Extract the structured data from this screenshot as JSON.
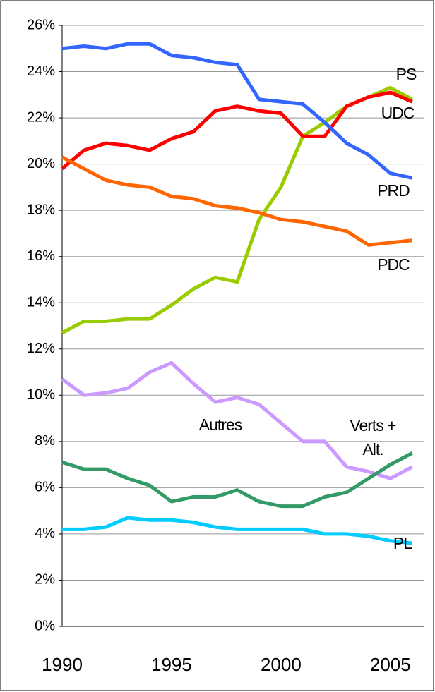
{
  "chart_data": {
    "type": "line",
    "x": [
      1990,
      1991,
      1992,
      1993,
      1994,
      1995,
      1996,
      1997,
      1998,
      1999,
      2000,
      2001,
      2002,
      2003,
      2004,
      2005,
      2006
    ],
    "xlim": [
      1990,
      2006.2
    ],
    "xticks": [
      1990,
      1995,
      2000,
      2005
    ],
    "ylim": [
      0,
      26
    ],
    "yticks": [
      {
        "value": 0,
        "label": "0%"
      },
      {
        "value": 2,
        "label": "2%"
      },
      {
        "value": 4,
        "label": "4%"
      },
      {
        "value": 6,
        "label": "6%"
      },
      {
        "value": 8,
        "label": "8%"
      },
      {
        "value": 10,
        "label": "10%"
      },
      {
        "value": 12,
        "label": "12%"
      },
      {
        "value": 14,
        "label": "14%"
      },
      {
        "value": 16,
        "label": "16%"
      },
      {
        "value": 18,
        "label": "18%"
      },
      {
        "value": 20,
        "label": "20%"
      },
      {
        "value": 22,
        "label": "22%"
      },
      {
        "value": 24,
        "label": "24%"
      },
      {
        "value": 26,
        "label": "26%"
      }
    ],
    "grid": true,
    "series": [
      {
        "name": "PS",
        "color": "#99cc00",
        "values": [
          12.7,
          13.2,
          13.2,
          13.3,
          13.3,
          13.9,
          14.6,
          15.1,
          14.9,
          17.6,
          19.0,
          21.2,
          21.8,
          22.5,
          22.9,
          23.3,
          22.8
        ]
      },
      {
        "name": "UDC",
        "color": "#ff0000",
        "values": [
          19.8,
          20.6,
          20.9,
          20.8,
          20.6,
          21.1,
          21.4,
          22.3,
          22.5,
          22.3,
          22.2,
          21.2,
          21.2,
          22.5,
          22.9,
          23.1,
          22.7
        ]
      },
      {
        "name": "PRD",
        "color": "#3366ff",
        "values": [
          25.0,
          25.1,
          25.0,
          25.2,
          25.2,
          24.7,
          24.6,
          24.4,
          24.3,
          22.8,
          22.7,
          22.6,
          21.8,
          20.9,
          20.4,
          19.6,
          19.4
        ]
      },
      {
        "name": "PDC",
        "color": "#ff6600",
        "values": [
          20.3,
          19.8,
          19.3,
          19.1,
          19.0,
          18.6,
          18.5,
          18.2,
          18.1,
          17.9,
          17.6,
          17.5,
          17.3,
          17.1,
          16.5,
          16.6,
          16.7
        ]
      },
      {
        "name": "Autres",
        "color": "#cc99ff",
        "values": [
          10.7,
          10.0,
          10.1,
          10.3,
          11.0,
          11.4,
          10.5,
          9.7,
          9.9,
          9.6,
          8.8,
          8.0,
          8.0,
          6.9,
          6.7,
          6.4,
          6.9
        ]
      },
      {
        "name": "Verts + Alt.",
        "color": "#339966",
        "values": [
          7.1,
          6.8,
          6.8,
          6.4,
          6.1,
          5.4,
          5.6,
          5.6,
          5.9,
          5.4,
          5.2,
          5.2,
          5.6,
          5.8,
          6.4,
          7.0,
          7.5
        ]
      },
      {
        "name": "PL",
        "color": "#00ccff",
        "values": [
          4.2,
          4.2,
          4.3,
          4.7,
          4.6,
          4.6,
          4.5,
          4.3,
          4.2,
          4.2,
          4.2,
          4.2,
          4.0,
          4.0,
          3.9,
          3.7,
          3.6
        ]
      }
    ]
  }
}
